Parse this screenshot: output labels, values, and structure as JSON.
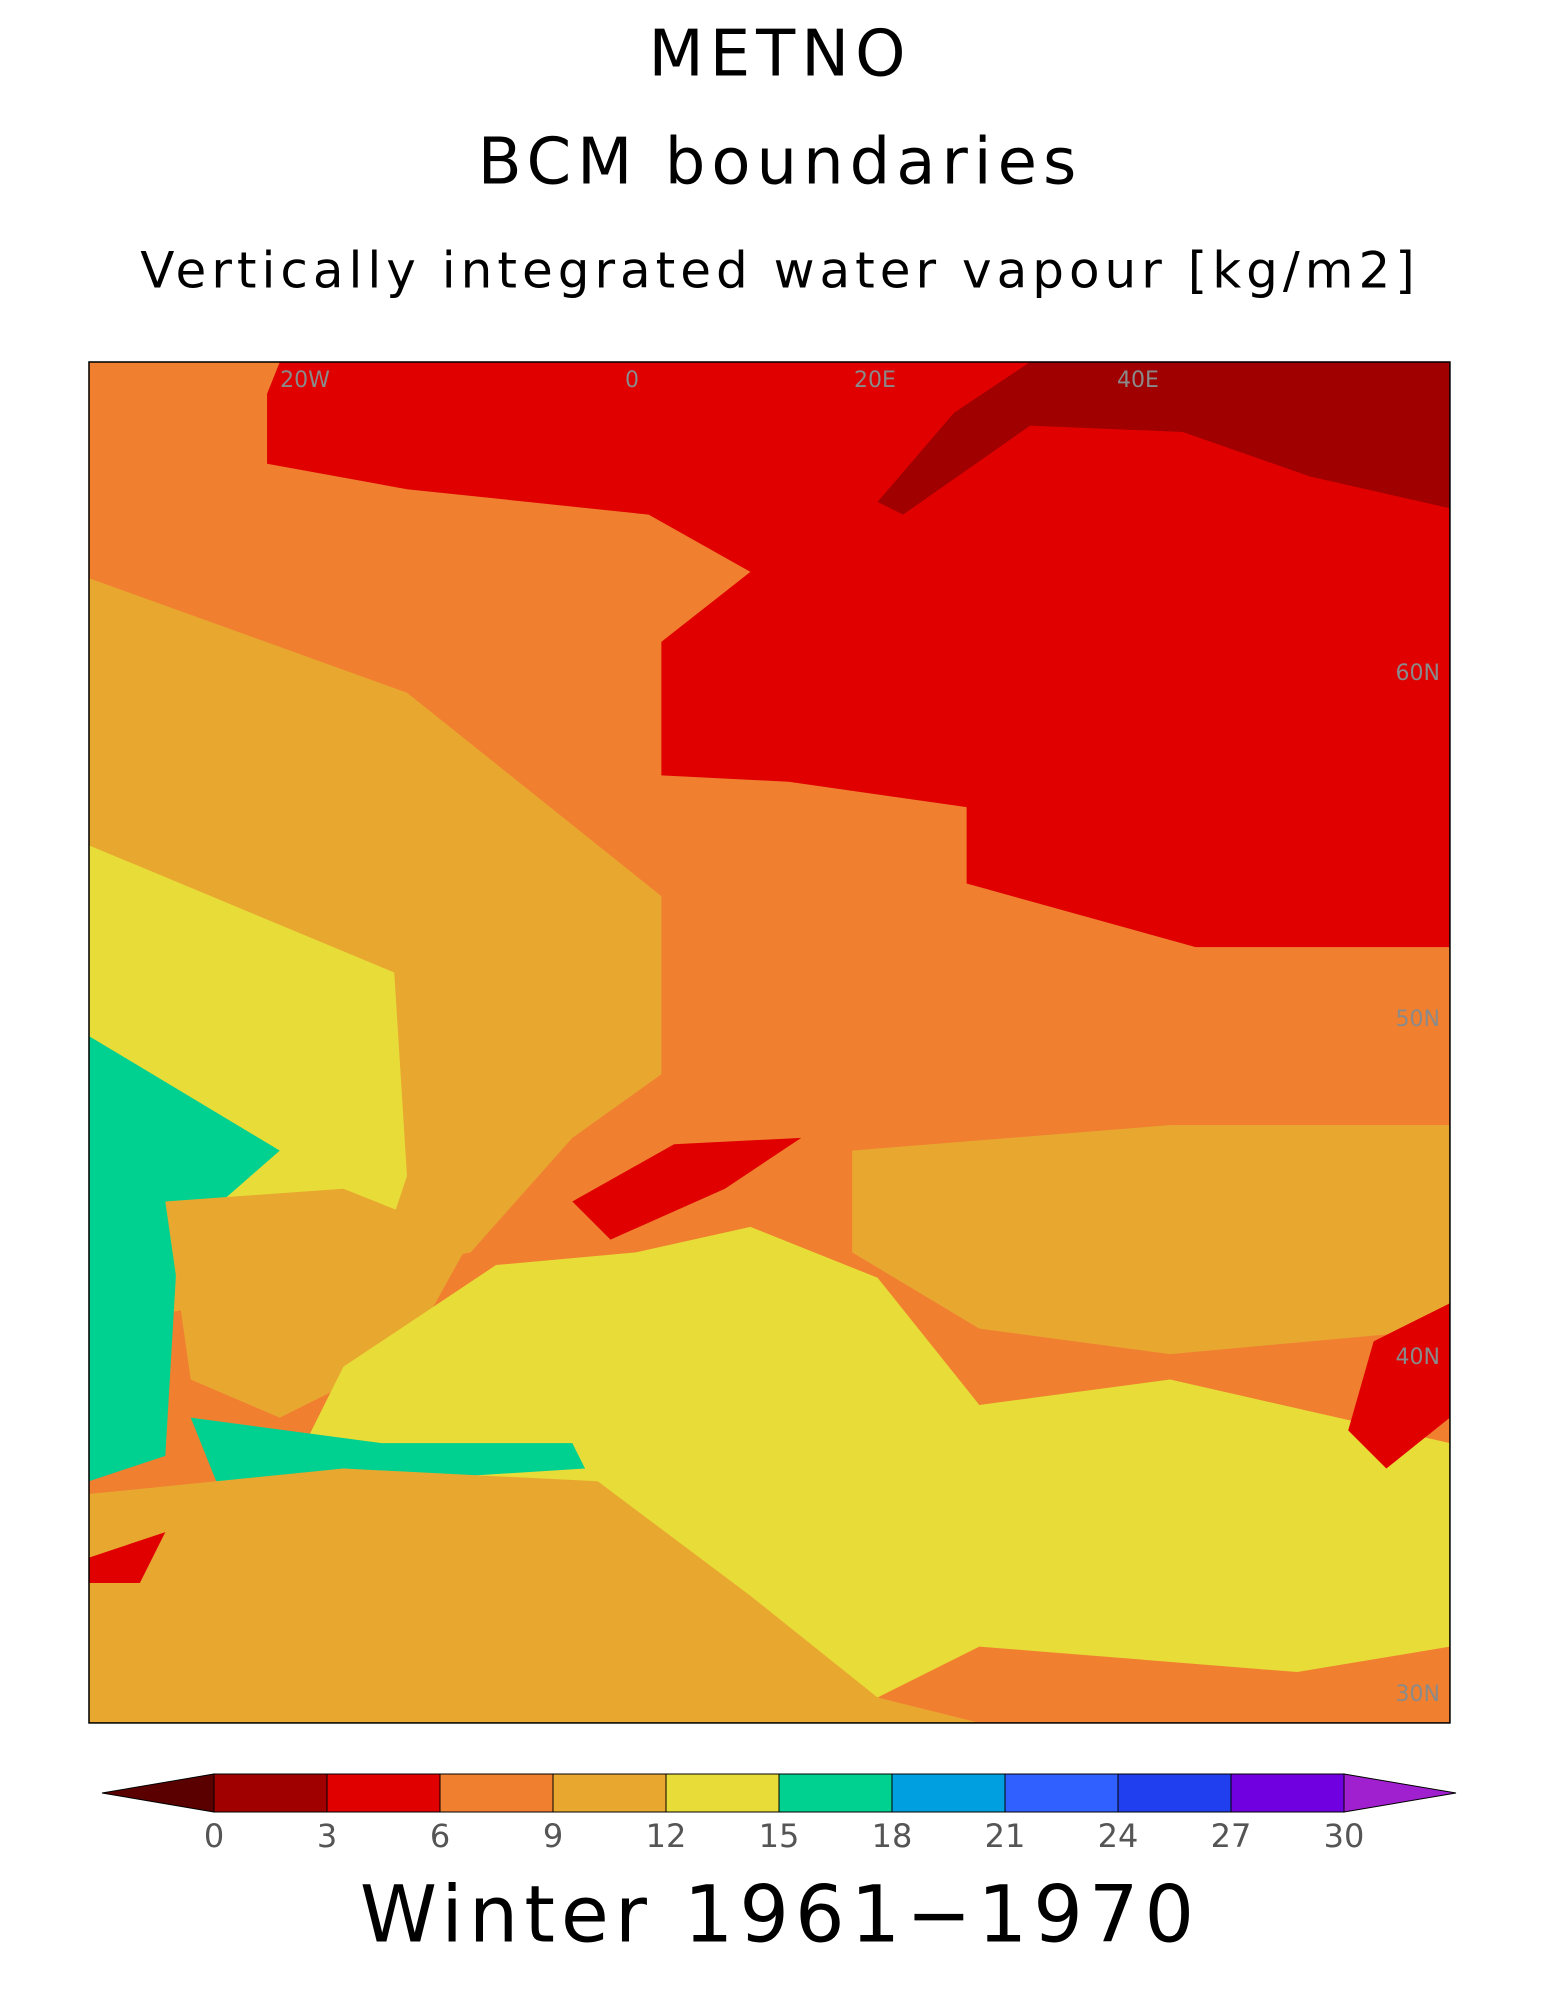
{
  "header": {
    "title": "METNO",
    "subtitle": "BCM boundaries",
    "variable": "Vertically integrated water vapour [kg/m2]"
  },
  "map": {
    "labels": [
      "20W",
      "0",
      "20E",
      "40E",
      "60N",
      "50N",
      "40N",
      "30N"
    ]
  },
  "colorbar": {
    "ticks": [
      0,
      3,
      6,
      9,
      12,
      15,
      18,
      21,
      24,
      27,
      30
    ],
    "colors": [
      "#5a0000",
      "#a00000",
      "#e00000",
      "#f08030",
      "#e8a830",
      "#e8dc38",
      "#00d090",
      "#00a0e0",
      "#3060ff",
      "#2040f0",
      "#7000e0",
      "#a020d0"
    ]
  },
  "footer": "Winter 1961−1970"
}
